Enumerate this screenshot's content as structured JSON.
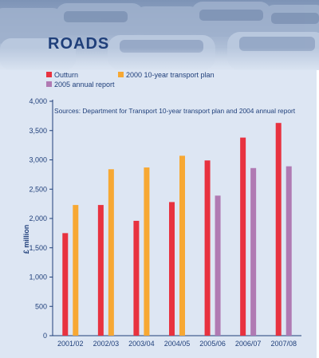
{
  "page": {
    "title": "ROADS"
  },
  "chart_data": {
    "type": "bar",
    "title": "",
    "subtitle": "Sources: Department for Transport 10-year transport plan and 2004 annual report",
    "ylabel": "£ million",
    "xlabel": "",
    "ylim": [
      0,
      4000
    ],
    "yticks": [
      "0",
      "500",
      "1,000",
      "1,500",
      "2,000",
      "2,500",
      "3,000",
      "3,500",
      "4,000"
    ],
    "ytick_values": [
      0,
      500,
      1000,
      1500,
      2000,
      2500,
      3000,
      3500,
      4000
    ],
    "categories": [
      "2001/02",
      "2002/03",
      "2003/04",
      "2004/05",
      "2005/06",
      "2006/07",
      "2007/08"
    ],
    "legend_position": "top-left",
    "series": [
      {
        "name": "Outturn",
        "color": "#e8323f",
        "values": [
          1750,
          2230,
          1960,
          2280,
          2990,
          3380,
          3630
        ]
      },
      {
        "name": "2000 10-year transport plan",
        "color": "#f7a833",
        "values": [
          2230,
          2840,
          2870,
          3070,
          null,
          null,
          null
        ]
      },
      {
        "name": "2005 annual report",
        "color": "#b07ab3",
        "values": [
          null,
          null,
          null,
          null,
          2390,
          2860,
          2890
        ]
      }
    ]
  }
}
